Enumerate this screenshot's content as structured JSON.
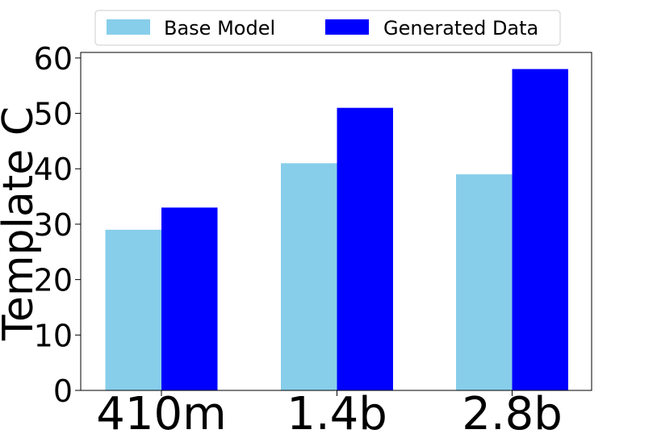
{
  "chart_data": {
    "type": "bar",
    "title": "",
    "xlabel": "",
    "ylabel": "Template C",
    "categories": [
      "410m",
      "1.4b",
      "2.8b"
    ],
    "series": [
      {
        "name": "Base Model",
        "color": "#87CEEB",
        "values": [
          29,
          41,
          39
        ]
      },
      {
        "name": "Generated Data",
        "color": "#0000FF",
        "values": [
          33,
          51,
          58
        ]
      }
    ],
    "ylim": [
      0,
      61
    ],
    "yticks": [
      "0",
      "10",
      "20",
      "30",
      "40",
      "50",
      "60"
    ],
    "grid": false,
    "legend_position": "top-center"
  }
}
